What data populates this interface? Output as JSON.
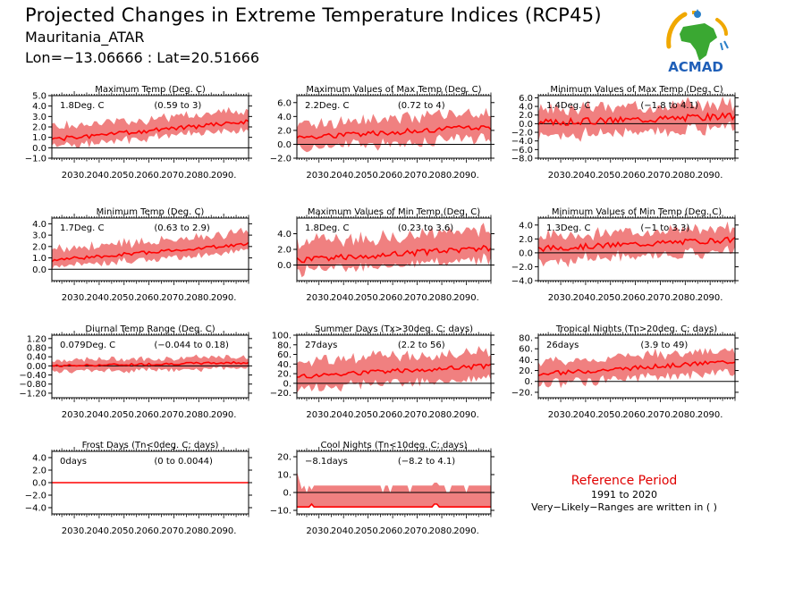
{
  "header": {
    "title": "Projected Changes in Extreme Temperature Indices (RCP45)",
    "location": "Mauritania_ATAR",
    "coords": "Lon=−13.06666 : Lat=20.51666"
  },
  "logo": {
    "text": "ACMAD",
    "icon": "acmad-africa-logo"
  },
  "reference": {
    "title": "Reference Period",
    "years": "1991 to 2020",
    "note": "Very−Likely−Ranges are written in ( )"
  },
  "colors": {
    "band": "#f08080",
    "line": "#ff0000",
    "zero": "#000000"
  },
  "chart_data": [
    {
      "id": "p1",
      "type": "area",
      "title": "Maximum Temp (Deg. C)",
      "value": "1.8Deg. C",
      "range": "(0.59 to 3)",
      "ylim": [
        -1,
        5
      ],
      "yticks": [
        -1,
        0,
        1,
        2,
        3,
        4,
        5
      ],
      "ytick_labels": [
        "−1.0",
        "0.0",
        "1.0",
        "2.0",
        "3.0",
        "4.0",
        "5.0"
      ],
      "x_range": [
        2021,
        2100
      ],
      "xticks": [
        2030,
        2040,
        2050,
        2060,
        2070,
        2080,
        2090
      ],
      "xtick_labels": [
        "2030.",
        "2040.",
        "2050.",
        "2060.",
        "2070.",
        "2080.",
        "2090."
      ],
      "series": {
        "start": 0.8,
        "end": 2.5,
        "band_low": 0.7,
        "band_high": 1.1,
        "noise": 0.2,
        "seed": 1
      }
    },
    {
      "id": "p2",
      "type": "area",
      "title": "Maximum Values of Max Temp (Deg. C)",
      "value": "2.2Deg. C",
      "range": "(0.72 to 4)",
      "ylim": [
        -2,
        7
      ],
      "yticks": [
        -2,
        0,
        2,
        4,
        6
      ],
      "ytick_labels": [
        "−2.0",
        "0.0",
        "2.0",
        "4.0",
        "6.0"
      ],
      "x_range": [
        2021,
        2100
      ],
      "xticks": [
        2030,
        2040,
        2050,
        2060,
        2070,
        2080,
        2090
      ],
      "xtick_labels": [
        "2030.",
        "2040.",
        "2050.",
        "2060.",
        "2070.",
        "2080.",
        "2090."
      ],
      "series": {
        "start": 1.0,
        "end": 2.5,
        "band_low": 1.6,
        "band_high": 2.0,
        "noise": 0.4,
        "seed": 2
      }
    },
    {
      "id": "p3",
      "type": "area",
      "title": "Minimum Values of Max Temp (Deg. C)",
      "value": "1.4Deg. C",
      "range": "(−1.8 to 4.1)",
      "ylim": [
        -8,
        6.5
      ],
      "yticks": [
        -8,
        -6,
        -4,
        -2,
        0,
        2,
        4,
        6
      ],
      "ytick_labels": [
        "−8.0",
        "−6.0",
        "−4.0",
        "−2.0",
        "0.0",
        "2.0",
        "4.0",
        "6.0"
      ],
      "x_range": [
        2021,
        2100
      ],
      "xticks": [
        2030,
        2040,
        2050,
        2060,
        2070,
        2080,
        2090
      ],
      "xtick_labels": [
        "2030.",
        "2040.",
        "2050.",
        "2060.",
        "2070.",
        "2080.",
        "2090."
      ],
      "series": {
        "start": 0.2,
        "end": 1.8,
        "band_low": 3.0,
        "band_high": 3.0,
        "noise": 0.8,
        "seed": 3
      }
    },
    {
      "id": "p4",
      "type": "area",
      "title": "Minimum Temp (Deg. C)",
      "value": "1.7Deg. C",
      "range": "(0.63 to 2.9)",
      "ylim": [
        -1,
        4.5
      ],
      "yticks": [
        0,
        1,
        2,
        3,
        4
      ],
      "ytick_labels": [
        "0.0",
        "1.0",
        "2.0",
        "3.0",
        "4.0"
      ],
      "x_range": [
        2021,
        2100
      ],
      "xticks": [
        2030,
        2040,
        2050,
        2060,
        2070,
        2080,
        2090
      ],
      "xtick_labels": [
        "2030.",
        "2040.",
        "2050.",
        "2060.",
        "2070.",
        "2080.",
        "2090."
      ],
      "series": {
        "start": 0.8,
        "end": 2.2,
        "band_low": 0.6,
        "band_high": 1.0,
        "noise": 0.15,
        "seed": 4
      }
    },
    {
      "id": "p5",
      "type": "area",
      "title": "Maximum Values of Min Temp (Deg. C)",
      "value": "1.8Deg. C",
      "range": "(0.23 to 3.6)",
      "ylim": [
        -2,
        6
      ],
      "yticks": [
        0,
        2,
        4
      ],
      "ytick_labels": [
        "0.0",
        "2.0",
        "4.0"
      ],
      "x_range": [
        2021,
        2100
      ],
      "xticks": [
        2030,
        2040,
        2050,
        2060,
        2070,
        2080,
        2090
      ],
      "xtick_labels": [
        "2030.",
        "2040.",
        "2050.",
        "2060.",
        "2070.",
        "2080.",
        "2090."
      ],
      "series": {
        "start": 0.6,
        "end": 2.2,
        "band_low": 1.4,
        "band_high": 2.2,
        "noise": 0.4,
        "seed": 5
      }
    },
    {
      "id": "p6",
      "type": "area",
      "title": "Minimum Values of Min Temp (Deg. C)",
      "value": "1.3Deg. C",
      "range": "(−1 to 3.3)",
      "ylim": [
        -4,
        5
      ],
      "yticks": [
        -4,
        -2,
        0,
        2,
        4
      ],
      "ytick_labels": [
        "−4.0",
        "−2.0",
        "0.0",
        "2.0",
        "4.0"
      ],
      "x_range": [
        2021,
        2100
      ],
      "xticks": [
        2030,
        2040,
        2050,
        2060,
        2070,
        2080,
        2090
      ],
      "xtick_labels": [
        "2030.",
        "2040.",
        "2050.",
        "2060.",
        "2070.",
        "2080.",
        "2090."
      ],
      "series": {
        "start": 0.6,
        "end": 1.9,
        "band_low": 1.8,
        "band_high": 1.8,
        "noise": 0.4,
        "seed": 6
      }
    },
    {
      "id": "p7",
      "type": "area",
      "title": "Diurnal Temp Range (Deg. C)",
      "value": "0.079Deg. C",
      "range": "(−0.044 to 0.18)",
      "ylim": [
        -1.4,
        1.35
      ],
      "yticks": [
        -1.2,
        -0.8,
        -0.4,
        0,
        0.4,
        0.8,
        1.2
      ],
      "ytick_labels": [
        "−1.20",
        "−0.80",
        "−0.40",
        "0.00",
        "0.40",
        "0.80",
        "1.20"
      ],
      "x_range": [
        2021,
        2100
      ],
      "xticks": [
        2030,
        2040,
        2050,
        2060,
        2070,
        2080,
        2090
      ],
      "xtick_labels": [
        "2030.",
        "2040.",
        "2050.",
        "2060.",
        "2070.",
        "2080.",
        "2090."
      ],
      "series": {
        "start": 0.0,
        "end": 0.15,
        "band_low": 0.25,
        "band_high": 0.25,
        "noise": 0.05,
        "seed": 7
      }
    },
    {
      "id": "p8",
      "type": "area",
      "title": "Summer Days (Tx>30deg. C; days)",
      "value": "27days",
      "range": "(2.2 to 56)",
      "ylim": [
        -30,
        100
      ],
      "yticks": [
        -20,
        0,
        20,
        40,
        60,
        80,
        100
      ],
      "ytick_labels": [
        "−20.",
        "0.",
        "20.",
        "40.",
        "60.",
        "80.",
        "100."
      ],
      "x_range": [
        2021,
        2100
      ],
      "xticks": [
        2030,
        2040,
        2050,
        2060,
        2070,
        2080,
        2090
      ],
      "xtick_labels": [
        "2030.",
        "2040.",
        "2050.",
        "2060.",
        "2070.",
        "2080.",
        "2090."
      ],
      "series": {
        "start": 14,
        "end": 36,
        "band_low": 25,
        "band_high": 30,
        "noise": 5,
        "seed": 8
      }
    },
    {
      "id": "p9",
      "type": "area",
      "title": "Tropical Nights (Tn>20deg. C; days)",
      "value": "26days",
      "range": "(3.9 to 49)",
      "ylim": [
        -30,
        85
      ],
      "yticks": [
        -20,
        0,
        20,
        40,
        60,
        80
      ],
      "ytick_labels": [
        "−20.",
        "0.",
        "20.",
        "40.",
        "60.",
        "80."
      ],
      "x_range": [
        2021,
        2100
      ],
      "xticks": [
        2030,
        2040,
        2050,
        2060,
        2070,
        2080,
        2090
      ],
      "xtick_labels": [
        "2030.",
        "2040.",
        "2050.",
        "2060.",
        "2070.",
        "2080.",
        "2090."
      ],
      "series": {
        "start": 13,
        "end": 37,
        "band_low": 18,
        "band_high": 22,
        "noise": 4,
        "seed": 9
      }
    },
    {
      "id": "p10",
      "type": "area",
      "title": "Frost Days (Tn<0deg. C; days)",
      "value": "0days",
      "range": "(0 to 0.0044)",
      "ylim": [
        -5,
        5
      ],
      "yticks": [
        -4,
        -2,
        0,
        2,
        4
      ],
      "ytick_labels": [
        "−4.0",
        "−2.0",
        "0.0",
        "2.0",
        "4.0"
      ],
      "x_range": [
        2021,
        2100
      ],
      "xticks": [
        2030,
        2040,
        2050,
        2060,
        2070,
        2080,
        2090
      ],
      "xtick_labels": [
        "2030.",
        "2040.",
        "2050.",
        "2060.",
        "2070.",
        "2080.",
        "2090."
      ],
      "series": {
        "start": 0,
        "end": 0,
        "band_low": 0,
        "band_high": 0,
        "noise": 0,
        "seed": 10
      }
    },
    {
      "id": "p11",
      "type": "area",
      "title": "Cool Nights (Tn<10deg. C; days)",
      "value": "−8.1days",
      "range": "(−8.2 to 4.1)",
      "ylim": [
        -12,
        23
      ],
      "yticks": [
        -10,
        0,
        10,
        20
      ],
      "ytick_labels": [
        "−10.",
        "0.",
        "10.",
        "20."
      ],
      "x_range": [
        2021,
        2100
      ],
      "xticks": [
        2030,
        2040,
        2050,
        2060,
        2070,
        2080,
        2090
      ],
      "xtick_labels": [
        "2030.",
        "2040.",
        "2050.",
        "2060.",
        "2070.",
        "2080.",
        "2090."
      ],
      "series": {
        "start": -8.1,
        "end": -8.2,
        "band_low": 0.2,
        "band_high": 12,
        "noise": 0,
        "seed": 11
      }
    }
  ]
}
